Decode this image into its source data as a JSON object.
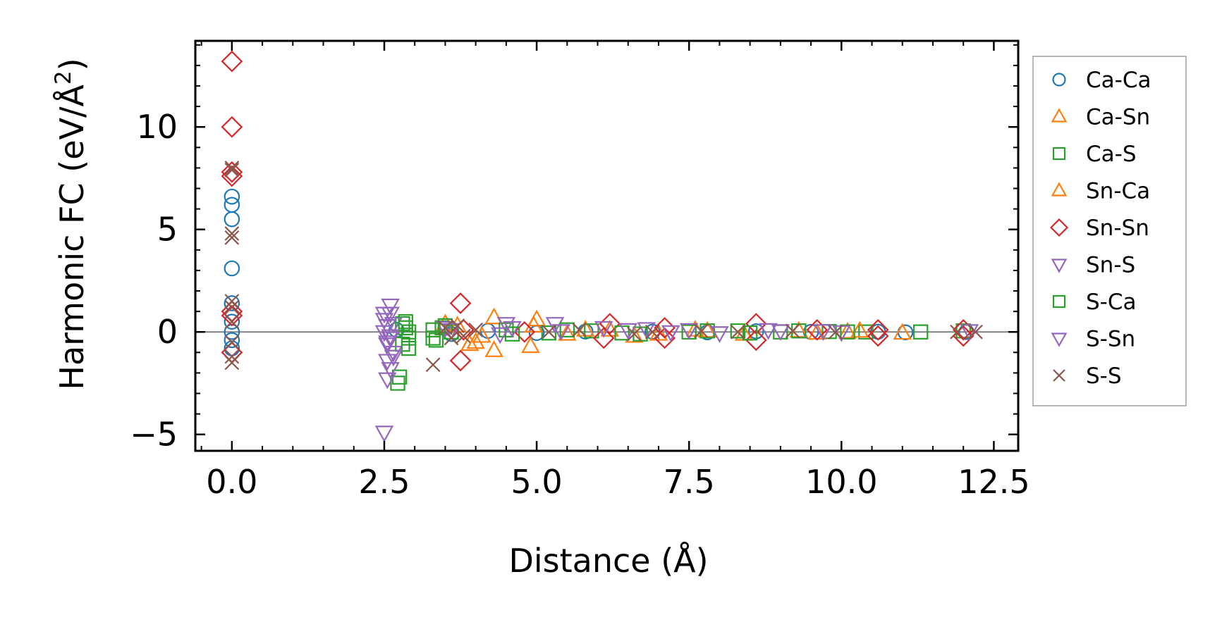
{
  "chart_data": {
    "type": "scatter",
    "xlabel": "Distance (Å)",
    "ylabel_main": "Harmonic FC (eV/Å",
    "ylabel_sup": "2",
    "ylabel_close": ")",
    "xlim": [
      -0.6,
      12.9
    ],
    "ylim": [
      -5.8,
      14.2
    ],
    "xticks": [
      0.0,
      2.5,
      5.0,
      7.5,
      10.0,
      12.5
    ],
    "xtick_labels": [
      "0.0",
      "2.5",
      "5.0",
      "7.5",
      "10.0",
      "12.5"
    ],
    "yticks": [
      -5,
      0,
      5,
      10
    ],
    "ytick_labels": [
      "−5",
      "0",
      "5",
      "10"
    ],
    "reference_line_y": 0,
    "legend_position": "right",
    "series": [
      {
        "name": "Ca-Ca",
        "marker": "circle",
        "color": "#1f77b4",
        "points": [
          [
            0,
            6.6
          ],
          [
            0,
            6.2
          ],
          [
            0,
            5.5
          ],
          [
            0,
            3.1
          ],
          [
            0,
            1.4
          ],
          [
            0,
            0.5
          ],
          [
            0,
            0
          ],
          [
            0,
            -0.4
          ],
          [
            0,
            -0.8
          ],
          [
            2.7,
            0.1
          ],
          [
            3.6,
            -0.1
          ],
          [
            4.2,
            0.05
          ],
          [
            5.0,
            -0.05
          ],
          [
            5.8,
            0.02
          ],
          [
            6.9,
            0.01
          ],
          [
            7.8,
            -0.02
          ],
          [
            8.6,
            0.03
          ],
          [
            9.5,
            0
          ],
          [
            10.6,
            0.01
          ],
          [
            11.05,
            -0.02
          ],
          [
            12.05,
            0
          ]
        ]
      },
      {
        "name": "Ca-Sn",
        "marker": "triangle-up",
        "color": "#ff7f0e",
        "points": [
          [
            3.5,
            0.4
          ],
          [
            3.9,
            -0.6
          ],
          [
            4.0,
            -0.5
          ],
          [
            4.3,
            0.7
          ],
          [
            4.3,
            -0.9
          ],
          [
            4.9,
            -0.7
          ],
          [
            5.0,
            0.6
          ],
          [
            5.8,
            0.1
          ],
          [
            6.6,
            -0.2
          ],
          [
            7.6,
            0.1
          ],
          [
            8.4,
            -0.1
          ],
          [
            9.3,
            0.05
          ],
          [
            10.1,
            0
          ],
          [
            11.0,
            -0.05
          ]
        ]
      },
      {
        "name": "Ca-S",
        "marker": "square",
        "color": "#2ca02c",
        "points": [
          [
            2.72,
            -2.5
          ],
          [
            2.75,
            -2.2
          ],
          [
            2.8,
            0.4
          ],
          [
            2.8,
            -0.6
          ],
          [
            2.85,
            0.2
          ],
          [
            2.9,
            -0.3
          ],
          [
            2.9,
            0
          ],
          [
            3.3,
            0.1
          ],
          [
            3.3,
            -0.3
          ],
          [
            3.45,
            0.2
          ],
          [
            3.6,
            0
          ],
          [
            4.5,
            0.1
          ],
          [
            5.2,
            -0.05
          ],
          [
            5.9,
            0.05
          ],
          [
            6.7,
            -0.1
          ],
          [
            7.5,
            0
          ],
          [
            8.3,
            0.05
          ],
          [
            9.0,
            0
          ],
          [
            9.8,
            0.02
          ],
          [
            10.4,
            0
          ],
          [
            11.3,
            0
          ],
          [
            12.0,
            0.05
          ]
        ]
      },
      {
        "name": "Sn-Ca",
        "marker": "triangle-up",
        "color": "#ff7f0e",
        "points": [
          [
            3.7,
            0.3
          ],
          [
            4.1,
            -0.2
          ],
          [
            4.95,
            0.3
          ],
          [
            5.5,
            -0.1
          ],
          [
            6.2,
            0.1
          ],
          [
            7.0,
            -0.1
          ],
          [
            7.8,
            0.05
          ],
          [
            9.6,
            -0.05
          ],
          [
            10.3,
            0.05
          ]
        ]
      },
      {
        "name": "Sn-Sn",
        "marker": "diamond",
        "color": "#d62728",
        "points": [
          [
            0,
            13.2
          ],
          [
            0,
            10.0
          ],
          [
            0,
            7.8
          ],
          [
            0,
            7.6
          ],
          [
            0,
            1.0
          ],
          [
            0,
            0.8
          ],
          [
            0,
            -1.0
          ],
          [
            3.75,
            1.4
          ],
          [
            3.75,
            -1.4
          ],
          [
            3.8,
            0.1
          ],
          [
            4.8,
            0
          ],
          [
            6.2,
            0.4
          ],
          [
            6.1,
            -0.3
          ],
          [
            7.1,
            0.2
          ],
          [
            7.1,
            -0.3
          ],
          [
            8.6,
            0.4
          ],
          [
            8.6,
            -0.4
          ],
          [
            9.6,
            0.1
          ],
          [
            10.6,
            0.1
          ],
          [
            10.6,
            -0.2
          ],
          [
            12.0,
            0.1
          ],
          [
            12.0,
            -0.2
          ]
        ]
      },
      {
        "name": "Sn-S",
        "marker": "triangle-down",
        "color": "#9467bd",
        "points": [
          [
            2.5,
            -4.9
          ],
          [
            2.55,
            -2.3
          ],
          [
            2.6,
            -1.8
          ],
          [
            2.55,
            -1.4
          ],
          [
            2.6,
            1.3
          ],
          [
            2.6,
            0.9
          ],
          [
            2.5,
            0.6
          ],
          [
            2.55,
            0.3
          ],
          [
            2.5,
            0
          ],
          [
            2.6,
            -0.3
          ],
          [
            2.55,
            -0.6
          ],
          [
            2.65,
            -1.0
          ],
          [
            2.65,
            0.4
          ],
          [
            3.5,
            0.2
          ],
          [
            4.5,
            0.4
          ],
          [
            4.6,
            0.2
          ],
          [
            5.3,
            0.4
          ],
          [
            6.1,
            0.2
          ],
          [
            6.8,
            0.15
          ],
          [
            7.5,
            0.1
          ],
          [
            8.8,
            0.1
          ],
          [
            9.7,
            0.05
          ],
          [
            12.1,
            0.05
          ]
        ]
      },
      {
        "name": "S-Ca",
        "marker": "square",
        "color": "#2ca02c",
        "points": [
          [
            2.85,
            0.5
          ],
          [
            2.9,
            -0.8
          ],
          [
            3.35,
            -0.4
          ],
          [
            3.5,
            0.3
          ],
          [
            4.6,
            -0.1
          ],
          [
            5.5,
            0.1
          ],
          [
            6.4,
            -0.05
          ],
          [
            7.8,
            0.05
          ],
          [
            8.5,
            -0.05
          ],
          [
            9.3,
            0.05
          ],
          [
            10.1,
            0
          ]
        ]
      },
      {
        "name": "S-Sn",
        "marker": "triangle-down",
        "color": "#9467bd",
        "points": [
          [
            2.5,
            0.9
          ],
          [
            2.55,
            -0.5
          ],
          [
            2.6,
            -0.2
          ],
          [
            2.65,
            -1.2
          ],
          [
            3.6,
            0.1
          ],
          [
            4.4,
            -0.1
          ],
          [
            5.4,
            0.05
          ],
          [
            6.5,
            0.1
          ],
          [
            7.2,
            0
          ],
          [
            8.0,
            -0.05
          ],
          [
            9.0,
            0.05
          ],
          [
            10.0,
            0
          ]
        ]
      },
      {
        "name": "S-S",
        "marker": "x",
        "color": "#8c564b",
        "points": [
          [
            0,
            8.0
          ],
          [
            0,
            7.9
          ],
          [
            0,
            4.8
          ],
          [
            0,
            4.6
          ],
          [
            0,
            1.5
          ],
          [
            0,
            1.2
          ],
          [
            0,
            0.5
          ],
          [
            0,
            -0.5
          ],
          [
            0,
            -1.2
          ],
          [
            0,
            -1.5
          ],
          [
            3.3,
            -1.6
          ],
          [
            3.5,
            0.2
          ],
          [
            3.6,
            -0.3
          ],
          [
            3.7,
            0.3
          ],
          [
            3.8,
            -0.2
          ],
          [
            4.0,
            0.1
          ],
          [
            5.2,
            0
          ],
          [
            5.7,
            0.1
          ],
          [
            6.6,
            -0.1
          ],
          [
            6.9,
            0
          ],
          [
            7.7,
            0.05
          ],
          [
            8.3,
            0
          ],
          [
            9.2,
            0.05
          ],
          [
            9.9,
            -0.02
          ],
          [
            11.9,
            0
          ],
          [
            12.2,
            0
          ]
        ]
      }
    ]
  }
}
